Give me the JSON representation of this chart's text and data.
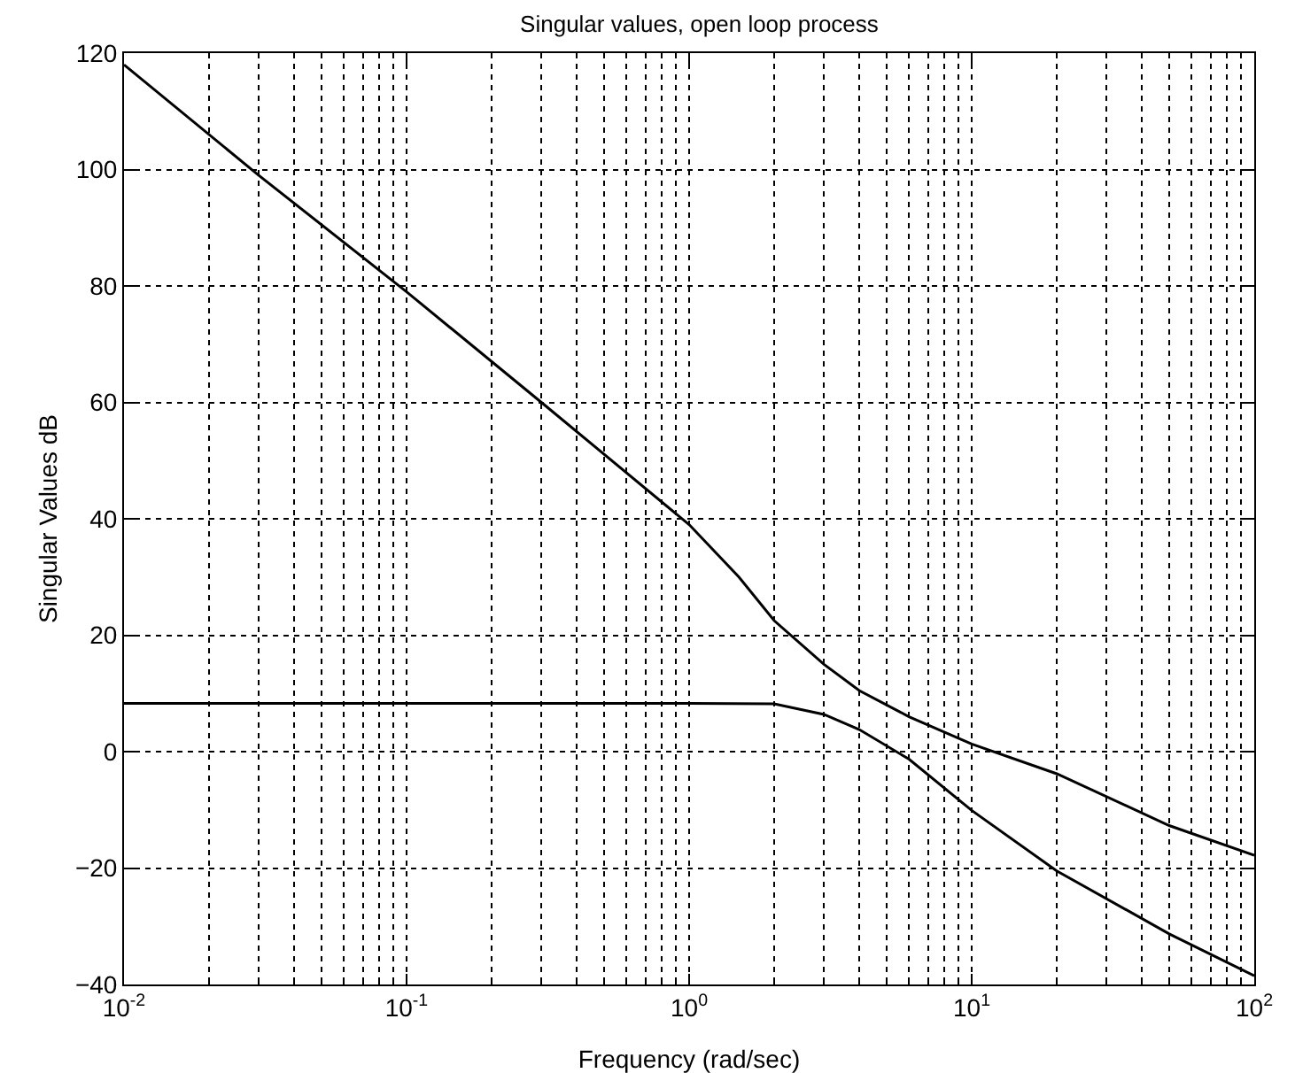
{
  "chart_data": {
    "type": "line",
    "title": "Singular values, open loop process",
    "xlabel": "Frequency (rad/sec)",
    "ylabel": "Singular Values dB",
    "log": "x",
    "grid": true,
    "line_style": "solid",
    "marker": "none",
    "xlim": [
      0.01,
      100
    ],
    "xticks": [
      {
        "value": 0.01,
        "label": "10$^{-2}$"
      },
      {
        "value": 0.1,
        "label": "10$^{-1}$"
      },
      {
        "value": 1,
        "label": "10$^{0}$"
      },
      {
        "value": 10,
        "label": "10$^{1}$"
      },
      {
        "value": 100,
        "label": "10$^{2}$"
      }
    ],
    "ylim": [
      -40,
      120
    ],
    "yticks": [
      -40,
      -20,
      0,
      20,
      40,
      60,
      80,
      100,
      120
    ],
    "series": [
      {
        "color": "#000000",
        "x": [
          0.01,
          0.03,
          0.1,
          0.3,
          1,
          1.5,
          2,
          3,
          4,
          6,
          10,
          20,
          50,
          100
        ],
        "values": [
          118,
          99,
          79,
          60,
          39,
          30,
          22.5,
          15,
          10.5,
          6,
          1.3,
          -3.8,
          -12.7,
          -17.8
        ]
      },
      {
        "color": "#000000",
        "x": [
          0.01,
          0.1,
          1,
          2,
          3,
          4,
          6,
          10,
          20,
          50,
          100
        ],
        "values": [
          8.3,
          8.3,
          8.3,
          8.2,
          6.4,
          3.8,
          -1.3,
          -10.1,
          -20.5,
          -31.3,
          -38.5
        ]
      }
    ]
  }
}
